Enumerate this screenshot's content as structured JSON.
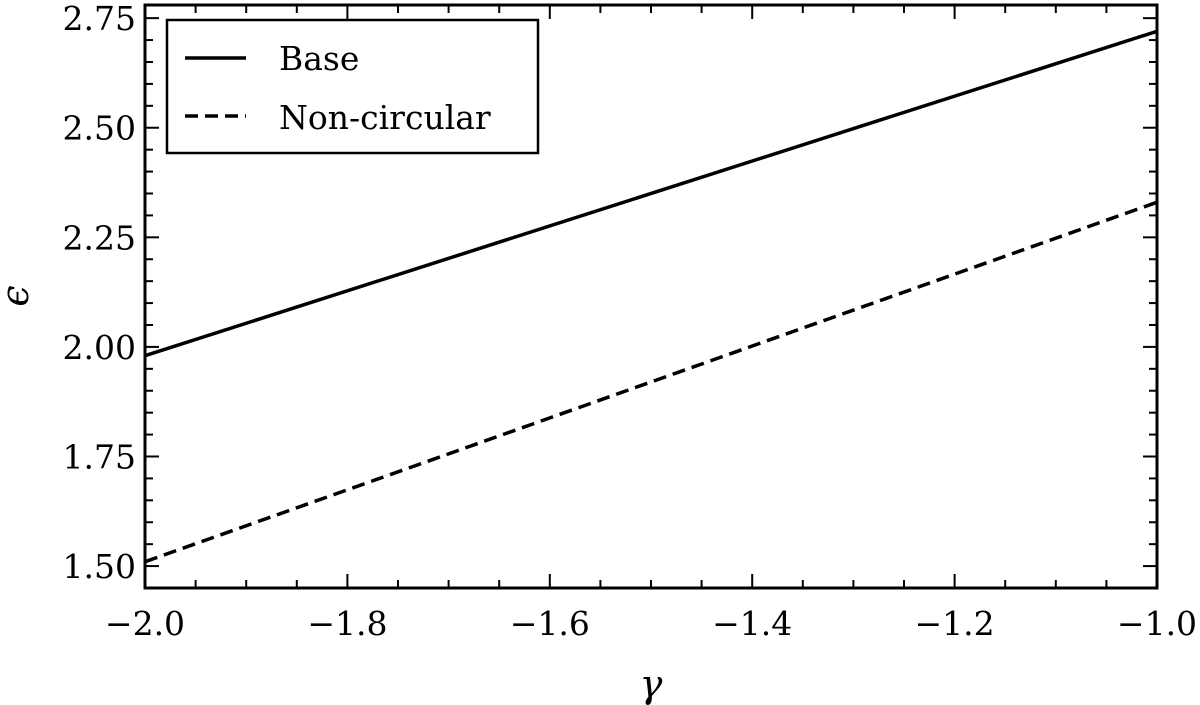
{
  "chart_data": {
    "type": "line",
    "title": "",
    "xlabel": "γ",
    "ylabel": "ϵ",
    "xlim": [
      -2.0,
      -1.0
    ],
    "ylim": [
      1.45,
      2.78
    ],
    "xticks": [
      -2.0,
      -1.8,
      -1.6,
      -1.4,
      -1.2,
      -1.0
    ],
    "xtick_labels": [
      "−2.0",
      "−1.8",
      "−1.6",
      "−1.4",
      "−1.2",
      "−1.0"
    ],
    "yticks": [
      1.5,
      1.75,
      2.0,
      2.25,
      2.5,
      2.75
    ],
    "ytick_labels": [
      "1.50",
      "1.75",
      "2.00",
      "2.25",
      "2.50",
      "2.75"
    ],
    "grid": false,
    "legend_position": "top-left",
    "series": [
      {
        "name": "Base",
        "style": "solid",
        "x": [
          -2.0,
          -1.0
        ],
        "y": [
          1.98,
          2.72
        ]
      },
      {
        "name": "Non-circular",
        "style": "dashed",
        "x": [
          -2.0,
          -1.0
        ],
        "y": [
          1.51,
          2.33
        ]
      }
    ]
  },
  "colors": {
    "line": "#000000",
    "background": "#ffffff"
  }
}
